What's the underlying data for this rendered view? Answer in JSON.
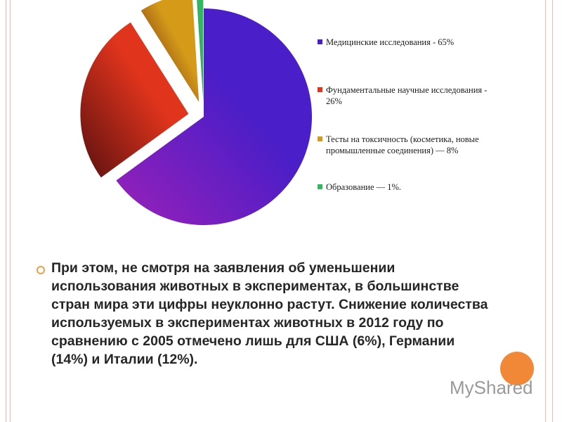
{
  "chart_data": {
    "type": "pie",
    "categories": [
      "Медицинские исследования - 65%",
      "Фундаментальные научные исследования - 26%",
      "Тесты на токсичность (косметика, новые промышленные соединения) — 8%",
      "Образование — 1%."
    ],
    "values": [
      65,
      26,
      8,
      1
    ],
    "colors": [
      "#4a1ec8",
      "#e0341c",
      "#d49a18",
      "#2fb860"
    ]
  },
  "text": {
    "paragraph": "При этом, не смотря на заявления об уменьшении использования животных в экспериментах, в большинстве стран мира эти цифры неуклонно растут. Снижение количества используемых в экспериментах животных в 2012 году по сравнению с 2005 отмечено лишь для США (6%), Германии (14%) и Италии (12%)."
  },
  "watermark": "MyShared"
}
